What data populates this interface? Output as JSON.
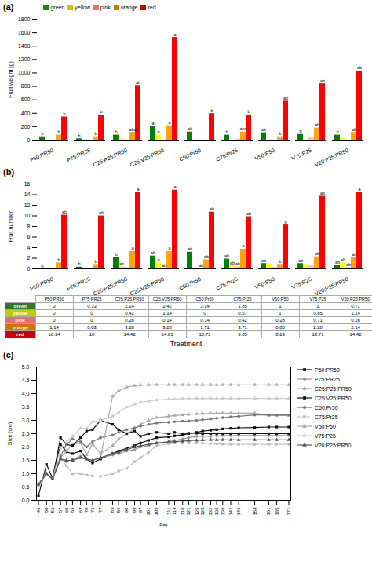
{
  "chart_data": [
    {
      "type": "bar",
      "title": "(a)",
      "ylabel": "Fruit weight (g)",
      "categories": [
        "P50:PR50",
        "P75:PR25",
        "C25:P25:PR50",
        "C25:V25:PR50",
        "C50:Pr50",
        "C75:Pr25",
        "V50:P50",
        "V75:P25",
        "V20:P25:PR50"
      ],
      "series": [
        {
          "name": "green",
          "color": "#2d7a2d",
          "values": [
            50,
            20,
            75,
            210,
            120,
            75,
            110,
            85,
            75
          ],
          "annotations": [
            "b",
            "b",
            "b",
            "a",
            "ab",
            "b",
            "ab",
            "b",
            "b"
          ]
        },
        {
          "name": "yellow",
          "color": "#c8c800",
          "values": [
            0,
            0,
            15,
            75,
            0,
            0,
            0,
            0,
            30
          ],
          "annotations": [
            null,
            null,
            null,
            "a",
            null,
            null,
            null,
            null,
            null
          ]
        },
        {
          "name": "pink",
          "color": "#e87070",
          "values": [
            0,
            0,
            0,
            0,
            0,
            15,
            0,
            40,
            0
          ],
          "annotations": [
            null,
            null,
            null,
            null,
            null,
            null,
            null,
            null,
            null
          ]
        },
        {
          "name": "orange",
          "color": "#cc7700",
          "values": [
            75,
            50,
            115,
            215,
            0,
            120,
            50,
            180,
            115
          ],
          "annotations": [
            "b",
            "b",
            "abc",
            "a",
            null,
            "abc",
            "b",
            "ab",
            "ab"
          ]
        },
        {
          "name": "red",
          "color": "#cc0000",
          "values": [
            345,
            375,
            815,
            1530,
            395,
            375,
            580,
            840,
            1030
          ],
          "annotations": [
            "b",
            "b",
            "ab",
            "a",
            "b",
            "b",
            "ab",
            "ab",
            "ab"
          ]
        }
      ],
      "ylim": [
        0,
        1800
      ],
      "yticks": [
        0,
        200,
        400,
        600,
        800,
        1000,
        1200,
        1400,
        1600,
        1800
      ],
      "legend": "upper left"
    },
    {
      "type": "bar",
      "title": "(b)",
      "ylabel": "Fruit number",
      "xlabel": "Treatment",
      "categories": [
        "P50:PR50",
        "P75:PR25",
        "C25:P25:PR50",
        "C25:V25:PR50",
        "C50:Pr50",
        "C75:Pr25",
        "V50:P50",
        "V75:P25",
        "V20:P25:PR50"
      ],
      "series": [
        {
          "name": "green",
          "color": "#2d7a2d",
          "values": [
            0,
            0.33,
            2.14,
            2.42,
            3.14,
            1.85,
            1,
            1,
            0.71
          ],
          "annotations": [
            "b",
            "b",
            "b",
            "ab",
            "ab",
            "ab",
            "ab",
            "ab",
            "ab"
          ],
          "table_cells": [
            "0",
            "0.33",
            "2.14",
            "2.42",
            "3.14",
            "1.85",
            "1",
            "1",
            "0.71"
          ]
        },
        {
          "name": "yellow",
          "color": "#c8c800",
          "values": [
            0,
            0,
            0.42,
            1.14,
            0,
            0.57,
            1,
            0.85,
            1.14
          ],
          "annotations": [
            null,
            null,
            "ab",
            "a",
            null,
            "ab",
            null,
            null,
            "ab"
          ],
          "table_cells": [
            "0",
            "0",
            "0.42",
            "1.14",
            "0",
            "0.57",
            "1",
            "0.85",
            "1.14"
          ]
        },
        {
          "name": "pink",
          "color": "#e87070",
          "values": [
            0,
            0,
            0.28,
            0.14,
            0.14,
            0.42,
            0.28,
            0.71,
            0.28
          ],
          "annotations": [
            null,
            null,
            null,
            "ab",
            "ab",
            "ab",
            null,
            null,
            "ab"
          ],
          "table_cells": [
            "0",
            "0",
            "0.28",
            "0.14",
            "0.14",
            "0.42",
            "0.28",
            "0.71",
            "0.28"
          ]
        },
        {
          "name": "orange",
          "color": "#cc7700",
          "values": [
            1.14,
            0.83,
            3.28,
            3.28,
            1.71,
            3.71,
            0.85,
            2.28,
            2.14
          ],
          "annotations": [
            "b",
            "b",
            "a",
            "a",
            "ab",
            "a",
            "b",
            "ab",
            "ab"
          ],
          "table_cells": [
            "1.14",
            "0.83",
            "3.28",
            "3.28",
            "1.71",
            "3.71",
            "0.85",
            "2.28",
            "2.14"
          ]
        },
        {
          "name": "red",
          "color": "#cc0000",
          "values": [
            10.14,
            10,
            14.42,
            14.85,
            10.71,
            9.85,
            8.285,
            13.71,
            14.42
          ],
          "annotations": [
            "ab",
            "ab",
            "a",
            "a",
            "ab",
            "ab",
            "b",
            "ab",
            "a"
          ],
          "table_cells": [
            "10.14",
            "10",
            "14.42",
            "14.85",
            "10.71",
            "9.85",
            "8.29",
            "13.71",
            "14.42"
          ]
        }
      ],
      "ylim": [
        0,
        16
      ],
      "yticks": [
        0,
        2,
        4,
        6,
        8,
        10,
        12,
        14,
        16
      ]
    },
    {
      "type": "line",
      "title": "(c)",
      "xlabel": "Day",
      "ylabel": "Size (cm)",
      "x": [
        46,
        50,
        53,
        57,
        60,
        63,
        67,
        70,
        73,
        77,
        83,
        86,
        90,
        94,
        97,
        101,
        105,
        111,
        114,
        118,
        121,
        125,
        128,
        132,
        135,
        138,
        142,
        146,
        154,
        161,
        165,
        171
      ],
      "series": [
        {
          "name": "P50:PR50",
          "color": "#111111",
          "marker": "square",
          "line_style": "solid",
          "values": [
            0.18,
            1.35,
            0.83,
            2.1,
            1.82,
            1.75,
            1.85,
            1.55,
            1.4,
            1.55,
            1.75,
            1.85,
            1.95,
            2.05,
            2.15,
            2.25,
            2.35,
            2.38,
            2.42,
            2.45,
            2.5,
            2.55,
            2.6,
            2.63,
            2.65,
            2.68,
            2.7,
            2.72,
            2.73,
            2.75,
            2.75,
            2.75
          ]
        },
        {
          "name": "P75:PR25",
          "color": "#999999",
          "marker": "circle",
          "line_style": "solid",
          "values": [
            0.55,
            1.0,
            0.8,
            1.55,
            1.45,
            1.55,
            1.65,
            1.55,
            1.5,
            1.6,
            1.7,
            1.75,
            1.85,
            1.9,
            2.0,
            2.05,
            2.15,
            2.2,
            2.25,
            2.3,
            2.35,
            2.4,
            2.4,
            2.4,
            2.42,
            2.43,
            2.43,
            2.43,
            2.43,
            2.43,
            2.43,
            2.43
          ]
        },
        {
          "name": "C25:P25:PR50",
          "color": "#aaaaaa",
          "marker": "triangle",
          "line_style": "solid",
          "values": [
            0.6,
            1.0,
            0.8,
            1.6,
            1.85,
            2.1,
            2.15,
            1.7,
            2.1,
            1.75,
            2.05,
            2.3,
            2.5,
            2.7,
            2.85,
            3.0,
            3.1,
            3.15,
            3.18,
            3.2,
            3.22,
            3.24,
            3.25,
            3.26,
            3.27,
            3.27,
            3.27,
            3.27,
            3.27,
            3.18,
            3.18,
            3.18
          ]
        },
        {
          "name": "C25:V25:PR50",
          "color": "#111111",
          "marker": "square",
          "line_style": "solid",
          "values": [
            0.6,
            1.0,
            0.8,
            2.35,
            2.1,
            2.05,
            2.35,
            2.6,
            2.65,
            3.0,
            2.85,
            2.65,
            2.5,
            2.6,
            2.4,
            2.5,
            2.55,
            2.5,
            2.55,
            2.5,
            2.52,
            2.52,
            2.5,
            2.5,
            2.5,
            2.5,
            2.5,
            2.5,
            2.5,
            2.5,
            2.5,
            2.5
          ]
        },
        {
          "name": "C50:Pr50",
          "color": "#777777",
          "marker": "circle",
          "line_style": "solid",
          "values": [
            0.6,
            1.0,
            0.8,
            1.65,
            2.1,
            2.3,
            2.2,
            2.0,
            2.2,
            2.35,
            2.45,
            2.55,
            2.65,
            2.72,
            2.78,
            2.85,
            2.9,
            2.93,
            2.95,
            2.97,
            2.98,
            3.0,
            3.02,
            3.05,
            3.08,
            3.1,
            3.13,
            3.15,
            3.2,
            3.2,
            3.2,
            3.2
          ]
        },
        {
          "name": "C75:Pr25",
          "color": "#bbbbbb",
          "marker": "square",
          "line_style": "dashed",
          "values": [
            0.6,
            1.0,
            0.8,
            1.55,
            1.3,
            1.0,
            1.0,
            0.95,
            0.92,
            0.9,
            1.0,
            1.1,
            1.2,
            1.45,
            1.6,
            1.8,
            2.05,
            2.12,
            2.15,
            2.15,
            2.15,
            2.15,
            2.14,
            2.13,
            2.12,
            2.11,
            2.1,
            2.1,
            2.1,
            2.1,
            2.1,
            2.1
          ]
        },
        {
          "name": "V50:P50",
          "color": "#aaaaaa",
          "marker": "triangle",
          "line_style": "solid",
          "values": [
            0.6,
            1.0,
            0.8,
            1.55,
            1.5,
            1.5,
            1.6,
            1.55,
            1.5,
            1.6,
            3.9,
            4.1,
            4.25,
            4.3,
            4.32,
            4.33,
            4.33,
            4.33,
            4.33,
            4.33,
            4.33,
            4.33,
            4.33,
            4.33,
            4.33,
            4.33,
            4.33,
            4.33,
            4.33,
            4.33,
            4.33,
            4.33
          ]
        },
        {
          "name": "V75:P25",
          "color": "#cccccc",
          "marker": "triangle",
          "line_style": "solid",
          "values": [
            0.6,
            1.0,
            0.8,
            1.95,
            2.2,
            2.4,
            2.7,
            2.7,
            2.95,
            3.0,
            3.15,
            3.3,
            3.5,
            3.6,
            3.68,
            3.72,
            3.76,
            3.79,
            3.8,
            3.81,
            3.81,
            3.82,
            3.82,
            3.82,
            3.82,
            3.82,
            3.82,
            3.82,
            3.82,
            3.82,
            3.82,
            3.82
          ]
        },
        {
          "name": "V20:P25:PR50",
          "color": "#555555",
          "marker": "triangle",
          "line_style": "solid",
          "values": [
            0.6,
            1.0,
            0.8,
            1.55,
            1.5,
            1.5,
            1.6,
            1.55,
            1.5,
            1.6,
            1.75,
            1.8,
            1.9,
            2.0,
            2.05,
            2.1,
            2.15,
            2.18,
            2.2,
            2.22,
            2.24,
            2.25,
            2.26,
            2.27,
            2.27,
            2.27,
            2.27,
            2.27,
            2.27,
            2.27,
            2.27,
            2.27
          ]
        }
      ],
      "xlim": [
        45,
        172
      ],
      "xticks": [
        46,
        50,
        53,
        57,
        60,
        63,
        67,
        70,
        73,
        77,
        83,
        86,
        90,
        94,
        97,
        101,
        105,
        111,
        114,
        118,
        121,
        125,
        128,
        132,
        135,
        138,
        142,
        146,
        154,
        161,
        165,
        171
      ],
      "ylim": [
        0,
        5
      ],
      "yticks": [
        {
          "value": 0,
          "label": "0.0"
        },
        0.5,
        {
          "value": 1,
          "label": "1.0"
        },
        1.5,
        {
          "value": 2,
          "label": "2.0"
        },
        2.5,
        {
          "value": 3,
          "label": "3.0"
        },
        3.5,
        {
          "value": 4,
          "label": "4.0"
        },
        4.5,
        {
          "value": 5,
          "label": "5.0"
        }
      ],
      "legend": "right"
    }
  ]
}
